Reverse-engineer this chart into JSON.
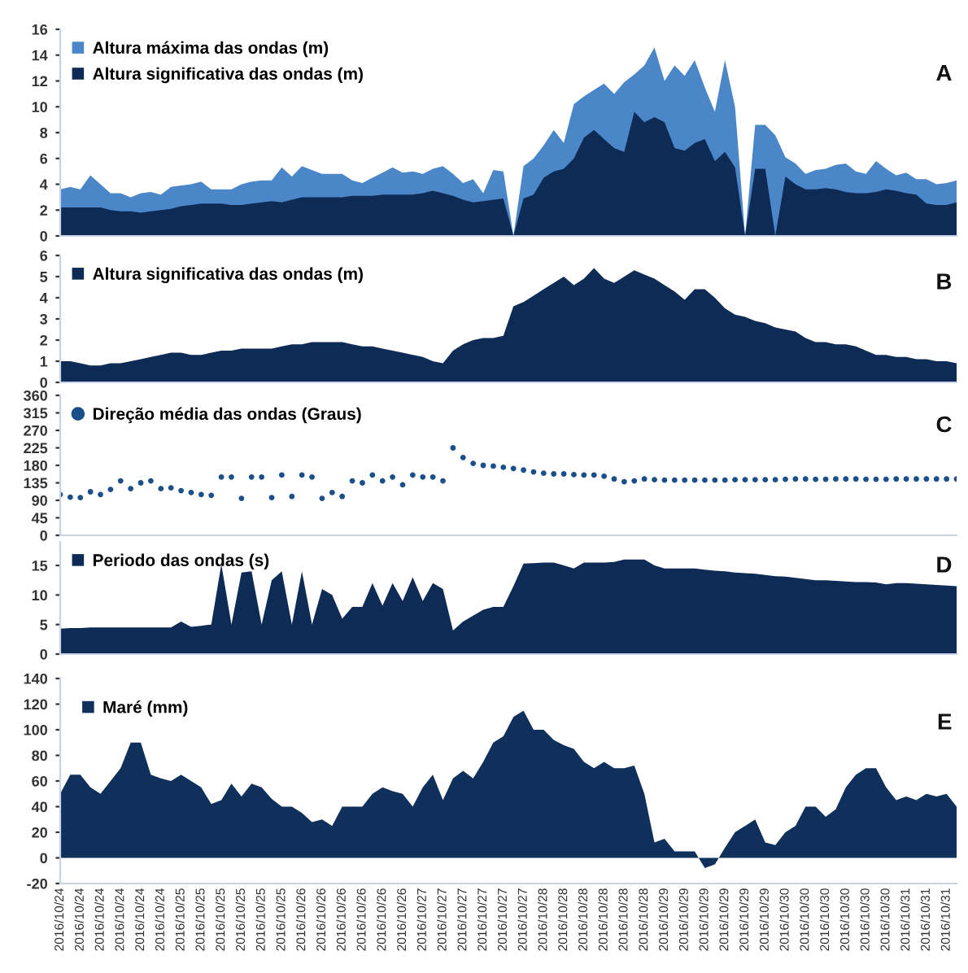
{
  "chart_data": [
    {
      "type": "area",
      "legend": "top left",
      "tick_labels": "y",
      "ylim": [
        0,
        16
      ],
      "yticks": [
        0,
        2,
        4,
        6,
        8,
        10,
        12,
        14,
        16
      ],
      "annotations": [
        "A"
      ],
      "categories": [
        "2016/10/24",
        null,
        "2016/10/24",
        null,
        "2016/10/24",
        null,
        "2016/10/24",
        null,
        "2016/10/24",
        null,
        "2016/10/24",
        null,
        "2016/10/25",
        null,
        "2016/10/25",
        null,
        "2016/10/25",
        null,
        "2016/10/25",
        null,
        "2016/10/25",
        null,
        "2016/10/25",
        null,
        "2016/10/26",
        null,
        "2016/10/26",
        null,
        "2016/10/26",
        null,
        "2016/10/26",
        null,
        "2016/10/26",
        null,
        "2016/10/26",
        null,
        "2016/10/27",
        null,
        "2016/10/27",
        null,
        "2016/10/27",
        null,
        "2016/10/27",
        null,
        "2016/10/27",
        null,
        "2016/10/27",
        null,
        "2016/10/28",
        null,
        "2016/10/28",
        null,
        "2016/10/28",
        null,
        "2016/10/28",
        null,
        "2016/10/28",
        null,
        "2016/10/28",
        null,
        "2016/10/29",
        null,
        "2016/10/29",
        null,
        "2016/10/29",
        null,
        "2016/10/29",
        null,
        "2016/10/29",
        null,
        "2016/10/29",
        null,
        "2016/10/30",
        null,
        "2016/10/30",
        null,
        "2016/10/30",
        null,
        "2016/10/30",
        null,
        "2016/10/30",
        null,
        "2016/10/30",
        null,
        "2016/10/31",
        null,
        "2016/10/31",
        null,
        "2016/10/31",
        null
      ],
      "series": [
        {
          "name": "Altura máxima das ondas (m)",
          "color": "#4a86c8",
          "values": [
            3.6,
            3.8,
            3.6,
            4.7,
            4.0,
            3.3,
            3.3,
            3.0,
            3.3,
            3.4,
            3.2,
            3.8,
            3.9,
            4.0,
            4.2,
            3.6,
            3.6,
            3.6,
            4.0,
            4.2,
            4.3,
            4.3,
            5.3,
            4.6,
            5.4,
            5.1,
            4.8,
            4.8,
            4.8,
            4.3,
            4.1,
            4.5,
            4.9,
            5.3,
            4.9,
            5.0,
            4.8,
            5.2,
            5.4,
            4.8,
            4.1,
            4.4,
            3.3,
            5.1,
            5.0,
            0,
            5.4,
            6.0,
            7.0,
            8.2,
            7.2,
            10.2,
            10.8,
            11.3,
            11.8,
            11.0,
            11.9,
            12.5,
            13.2,
            14.6,
            12.0,
            13.2,
            12.4,
            13.6,
            11.5,
            9.6,
            13.6,
            10.0,
            0,
            8.6,
            8.6,
            7.8,
            6.1,
            5.6,
            4.8,
            5.1,
            5.2,
            5.5,
            5.6,
            5.0,
            4.8,
            5.8,
            5.2,
            4.7,
            4.9,
            4.4,
            4.4,
            4.0,
            4.1,
            4.3
          ]
        },
        {
          "name": "Altura significativa das ondas (m)",
          "color": "#0d2b55",
          "values": [
            2.2,
            2.2,
            2.2,
            2.2,
            2.2,
            2.0,
            1.9,
            1.9,
            1.8,
            1.9,
            2.0,
            2.1,
            2.3,
            2.4,
            2.5,
            2.5,
            2.5,
            2.4,
            2.4,
            2.5,
            2.6,
            2.7,
            2.6,
            2.8,
            3.0,
            3.0,
            3.0,
            3.0,
            3.0,
            3.1,
            3.1,
            3.1,
            3.2,
            3.2,
            3.2,
            3.2,
            3.3,
            3.5,
            3.3,
            3.1,
            2.8,
            2.6,
            2.7,
            2.8,
            2.9,
            0,
            2.9,
            3.2,
            4.5,
            5.0,
            5.2,
            6.0,
            7.6,
            8.2,
            7.5,
            6.8,
            6.5,
            9.6,
            8.8,
            9.2,
            8.8,
            6.8,
            6.6,
            7.2,
            7.5,
            5.8,
            6.5,
            5.3,
            0,
            5.2,
            5.2,
            0,
            4.6,
            4.0,
            3.6,
            3.6,
            3.7,
            3.6,
            3.4,
            3.3,
            3.3,
            3.4,
            3.6,
            3.5,
            3.3,
            3.2,
            2.5,
            2.4,
            2.4,
            2.6
          ]
        }
      ]
    },
    {
      "type": "area",
      "legend": "top left",
      "tick_labels": "y",
      "ylim": [
        0,
        6
      ],
      "yticks": [
        0,
        1,
        2,
        3,
        4,
        5,
        6
      ],
      "annotations": [
        "B"
      ],
      "categories": [
        "2016/10/24",
        null,
        "2016/10/24",
        null,
        "2016/10/24",
        null,
        "2016/10/24",
        null,
        "2016/10/24",
        null,
        "2016/10/24",
        null,
        "2016/10/25",
        null,
        "2016/10/25",
        null,
        "2016/10/25",
        null,
        "2016/10/25",
        null,
        "2016/10/25",
        null,
        "2016/10/25",
        null,
        "2016/10/26",
        null,
        "2016/10/26",
        null,
        "2016/10/26",
        null,
        "2016/10/26",
        null,
        "2016/10/26",
        null,
        "2016/10/26",
        null,
        "2016/10/27",
        null,
        "2016/10/27",
        null,
        "2016/10/27",
        null,
        "2016/10/27",
        null,
        "2016/10/27",
        null,
        "2016/10/27",
        null,
        "2016/10/28",
        null,
        "2016/10/28",
        null,
        "2016/10/28",
        null,
        "2016/10/28",
        null,
        "2016/10/28",
        null,
        "2016/10/28",
        null,
        "2016/10/29",
        null,
        "2016/10/29",
        null,
        "2016/10/29",
        null,
        "2016/10/29",
        null,
        "2016/10/29",
        null,
        "2016/10/29",
        null,
        "2016/10/30",
        null,
        "2016/10/30",
        null,
        "2016/10/30",
        null,
        "2016/10/30",
        null,
        "2016/10/30",
        null,
        "2016/10/30",
        null,
        "2016/10/31",
        null,
        "2016/10/31",
        null,
        "2016/10/31",
        null
      ],
      "series": [
        {
          "name": "Altura significativa das ondas (m)",
          "color": "#0d2b55",
          "values": [
            1.0,
            1.0,
            0.9,
            0.8,
            0.8,
            0.9,
            0.9,
            1.0,
            1.1,
            1.2,
            1.3,
            1.4,
            1.4,
            1.3,
            1.3,
            1.4,
            1.5,
            1.5,
            1.6,
            1.6,
            1.6,
            1.6,
            1.7,
            1.8,
            1.8,
            1.9,
            1.9,
            1.9,
            1.9,
            1.8,
            1.7,
            1.7,
            1.6,
            1.5,
            1.4,
            1.3,
            1.2,
            1.0,
            0.9,
            1.5,
            1.8,
            2.0,
            2.1,
            2.1,
            2.2,
            3.6,
            3.8,
            4.1,
            4.4,
            4.7,
            5.0,
            4.6,
            4.9,
            5.4,
            4.9,
            4.7,
            5.0,
            5.3,
            5.1,
            4.9,
            4.6,
            4.3,
            3.9,
            4.4,
            4.4,
            4.0,
            3.5,
            3.2,
            3.1,
            2.9,
            2.8,
            2.6,
            2.5,
            2.4,
            2.1,
            1.9,
            1.9,
            1.8,
            1.8,
            1.7,
            1.5,
            1.3,
            1.3,
            1.2,
            1.2,
            1.1,
            1.1,
            1.0,
            1.0,
            0.9
          ]
        }
      ]
    },
    {
      "type": "scatter",
      "marker": "circle",
      "legend": "top left",
      "tick_labels": "y",
      "ylim": [
        0,
        360
      ],
      "yticks": [
        0,
        45,
        90,
        135,
        180,
        225,
        270,
        315,
        360
      ],
      "annotations": [
        "C"
      ],
      "categories": [
        "2016/10/24",
        null,
        "2016/10/24",
        null,
        "2016/10/24",
        null,
        "2016/10/24",
        null,
        "2016/10/24",
        null,
        "2016/10/24",
        null,
        "2016/10/25",
        null,
        "2016/10/25",
        null,
        "2016/10/25",
        null,
        "2016/10/25",
        null,
        "2016/10/25",
        null,
        "2016/10/25",
        null,
        "2016/10/26",
        null,
        "2016/10/26",
        null,
        "2016/10/26",
        null,
        "2016/10/26",
        null,
        "2016/10/26",
        null,
        "2016/10/26",
        null,
        "2016/10/27",
        null,
        "2016/10/27",
        null,
        "2016/10/27",
        null,
        "2016/10/27",
        null,
        "2016/10/27",
        null,
        "2016/10/27",
        null,
        "2016/10/28",
        null,
        "2016/10/28",
        null,
        "2016/10/28",
        null,
        "2016/10/28",
        null,
        "2016/10/28",
        null,
        "2016/10/28",
        null,
        "2016/10/29",
        null,
        "2016/10/29",
        null,
        "2016/10/29",
        null,
        "2016/10/29",
        null,
        "2016/10/29",
        null,
        "2016/10/29",
        null,
        "2016/10/30",
        null,
        "2016/10/30",
        null,
        "2016/10/30",
        null,
        "2016/10/30",
        null,
        "2016/10/30",
        null,
        "2016/10/30",
        null,
        "2016/10/31",
        null,
        "2016/10/31",
        null,
        "2016/10/31",
        null
      ],
      "series": [
        {
          "name": "Direção média das ondas (Graus)",
          "color": "#1b4f8a",
          "values": [
            105,
            98,
            97,
            112,
            105,
            118,
            140,
            120,
            135,
            140,
            120,
            122,
            115,
            110,
            105,
            103,
            150,
            150,
            95,
            150,
            150,
            97,
            155,
            100,
            155,
            150,
            95,
            110,
            100,
            140,
            135,
            155,
            140,
            150,
            130,
            155,
            150,
            150,
            140,
            225,
            200,
            185,
            180,
            178,
            175,
            172,
            168,
            163,
            160,
            158,
            158,
            156,
            155,
            155,
            152,
            145,
            138,
            140,
            145,
            143,
            142,
            142,
            142,
            142,
            142,
            142,
            142,
            143,
            143,
            143,
            143,
            143,
            144,
            145,
            145,
            144,
            144,
            145,
            145,
            145,
            144,
            144,
            144,
            145,
            145,
            145,
            145,
            145,
            145,
            145
          ]
        }
      ]
    },
    {
      "type": "area",
      "legend": "top left",
      "tick_labels": "y",
      "ylim": [
        0,
        19
      ],
      "yticks": [
        0,
        5,
        10,
        15
      ],
      "annotations": [
        "D"
      ],
      "categories": [
        "2016/10/24",
        null,
        "2016/10/24",
        null,
        "2016/10/24",
        null,
        "2016/10/24",
        null,
        "2016/10/24",
        null,
        "2016/10/24",
        null,
        "2016/10/25",
        null,
        "2016/10/25",
        null,
        "2016/10/25",
        null,
        "2016/10/25",
        null,
        "2016/10/25",
        null,
        "2016/10/25",
        null,
        "2016/10/26",
        null,
        "2016/10/26",
        null,
        "2016/10/26",
        null,
        "2016/10/26",
        null,
        "2016/10/26",
        null,
        "2016/10/26",
        null,
        "2016/10/27",
        null,
        "2016/10/27",
        null,
        "2016/10/27",
        null,
        "2016/10/27",
        null,
        "2016/10/27",
        null,
        "2016/10/27",
        null,
        "2016/10/28",
        null,
        "2016/10/28",
        null,
        "2016/10/28",
        null,
        "2016/10/28",
        null,
        "2016/10/28",
        null,
        "2016/10/28",
        null,
        "2016/10/29",
        null,
        "2016/10/29",
        null,
        "2016/10/29",
        null,
        "2016/10/29",
        null,
        "2016/10/29",
        null,
        "2016/10/29",
        null,
        "2016/10/30",
        null,
        "2016/10/30",
        null,
        "2016/10/30",
        null,
        "2016/10/30",
        null,
        "2016/10/30",
        null,
        "2016/10/30",
        null,
        "2016/10/31",
        null,
        "2016/10/31",
        null,
        "2016/10/31",
        null
      ],
      "series": [
        {
          "name": "Periodo das ondas (s)",
          "color": "#0d2b55",
          "values": [
            4.3,
            4.4,
            4.4,
            4.5,
            4.5,
            4.5,
            4.5,
            4.5,
            4.5,
            4.5,
            4.5,
            4.5,
            5.5,
            4.6,
            4.8,
            5.0,
            15.2,
            5,
            13.8,
            14.0,
            5,
            12.5,
            14.0,
            5,
            14.0,
            5,
            11,
            10,
            6,
            8,
            8.0,
            12.0,
            8.2,
            12,
            9,
            13,
            9,
            12,
            11,
            4,
            5.5,
            6.5,
            7.5,
            8,
            8,
            11.5,
            15.3,
            15.4,
            15.5,
            15.5,
            15,
            14.5,
            15.5,
            15.5,
            15.5,
            15.6,
            16.0,
            16.0,
            16.0,
            15,
            14.5,
            14.5,
            14.5,
            14.5,
            14.3,
            14.1,
            14.0,
            13.8,
            13.7,
            13.6,
            13.4,
            13.2,
            13.1,
            12.9,
            12.7,
            12.5,
            12.5,
            12.4,
            12.3,
            12.2,
            12.2,
            12.1,
            11.8,
            12.0,
            12.0,
            11.9,
            11.8,
            11.7,
            11.6,
            11.5
          ]
        }
      ]
    },
    {
      "type": "area",
      "legend": "top left",
      "ylim": [
        -20,
        140
      ],
      "yticks": [
        -20,
        0,
        20,
        40,
        60,
        80,
        100,
        120,
        140
      ],
      "annotations": [
        "E"
      ],
      "categories": [
        "2016/10/24",
        null,
        "2016/10/24",
        null,
        "2016/10/24",
        null,
        "2016/10/24",
        null,
        "2016/10/24",
        null,
        "2016/10/24",
        null,
        "2016/10/25",
        null,
        "2016/10/25",
        null,
        "2016/10/25",
        null,
        "2016/10/25",
        null,
        "2016/10/25",
        null,
        "2016/10/25",
        null,
        "2016/10/26",
        null,
        "2016/10/26",
        null,
        "2016/10/26",
        null,
        "2016/10/26",
        null,
        "2016/10/26",
        null,
        "2016/10/26",
        null,
        "2016/10/27",
        null,
        "2016/10/27",
        null,
        "2016/10/27",
        null,
        "2016/10/27",
        null,
        "2016/10/27",
        null,
        "2016/10/27",
        null,
        "2016/10/28",
        null,
        "2016/10/28",
        null,
        "2016/10/28",
        null,
        "2016/10/28",
        null,
        "2016/10/28",
        null,
        "2016/10/28",
        null,
        "2016/10/29",
        null,
        "2016/10/29",
        null,
        "2016/10/29",
        null,
        "2016/10/29",
        null,
        "2016/10/29",
        null,
        "2016/10/29",
        null,
        "2016/10/30",
        null,
        "2016/10/30",
        null,
        "2016/10/30",
        null,
        "2016/10/30",
        null,
        "2016/10/30",
        null,
        "2016/10/30",
        null,
        "2016/10/31",
        null,
        "2016/10/31",
        null,
        "2016/10/31",
        null
      ],
      "series": [
        {
          "name": "Maré (mm)",
          "color": "#10305c",
          "values": [
            50,
            65,
            65,
            55,
            50,
            60,
            70,
            90,
            90,
            65,
            62,
            60,
            65,
            60,
            55,
            42,
            45,
            58,
            48,
            58,
            55,
            46,
            40,
            40,
            35,
            28,
            30,
            25,
            40,
            40,
            40,
            50,
            55,
            52,
            50,
            40,
            55,
            65,
            45,
            62,
            68,
            62,
            75,
            90,
            95,
            110,
            115,
            100,
            100,
            92,
            88,
            85,
            75,
            70,
            75,
            70,
            70,
            72,
            50,
            12,
            15,
            5,
            5,
            5,
            -8,
            -5,
            8,
            20,
            25,
            30,
            12,
            10,
            20,
            25,
            40,
            40,
            32,
            38,
            55,
            65,
            70,
            70,
            55,
            45,
            48,
            45,
            50,
            48,
            50,
            40
          ]
        }
      ]
    }
  ]
}
